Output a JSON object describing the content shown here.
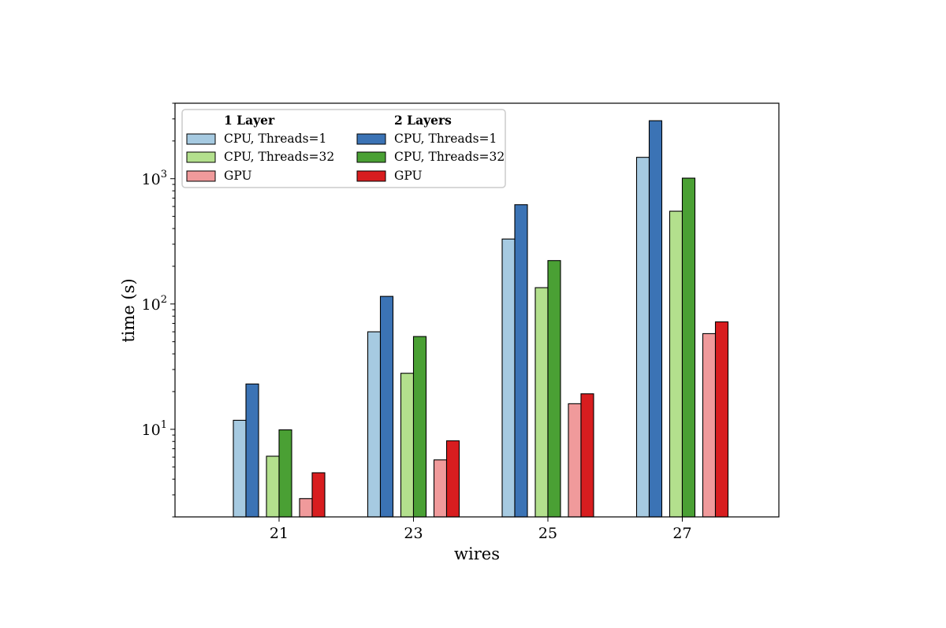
{
  "chart_data": {
    "type": "bar",
    "xlabel": "wires",
    "ylabel": "time (s)",
    "yscale": "log",
    "ylim": [
      2,
      4000
    ],
    "yticks": [
      {
        "value": 10,
        "base": "10",
        "exp": "1"
      },
      {
        "value": 100,
        "base": "10",
        "exp": "2"
      },
      {
        "value": 1000,
        "base": "10",
        "exp": "3"
      }
    ],
    "categories": [
      "21",
      "23",
      "25",
      "27"
    ],
    "legend_placement": "upper-left",
    "legend_groups": [
      {
        "title": "1 Layer",
        "entries": [
          0,
          2,
          4
        ]
      },
      {
        "title": "2 Layers",
        "entries": [
          1,
          3,
          5
        ]
      }
    ],
    "series": [
      {
        "name": "CPU, Threads=1",
        "layers": 1,
        "color": "#a6cae1",
        "values": [
          11.8,
          60,
          330,
          1480
        ]
      },
      {
        "name": "CPU, Threads=1",
        "layers": 2,
        "color": "#3b73b5",
        "values": [
          23,
          115,
          620,
          2900
        ]
      },
      {
        "name": "CPU, Threads=32",
        "layers": 1,
        "color": "#b3e08d",
        "values": [
          6.1,
          28,
          135,
          550
        ]
      },
      {
        "name": "CPU, Threads=32",
        "layers": 2,
        "color": "#4aa034",
        "values": [
          9.9,
          55,
          222,
          1010
        ]
      },
      {
        "name": "GPU",
        "layers": 1,
        "color": "#f09a9b",
        "values": [
          2.8,
          5.7,
          16,
          58
        ]
      },
      {
        "name": "GPU",
        "layers": 2,
        "color": "#d81d1f",
        "values": [
          4.5,
          8.1,
          19.2,
          72
        ]
      }
    ],
    "grid": false
  }
}
